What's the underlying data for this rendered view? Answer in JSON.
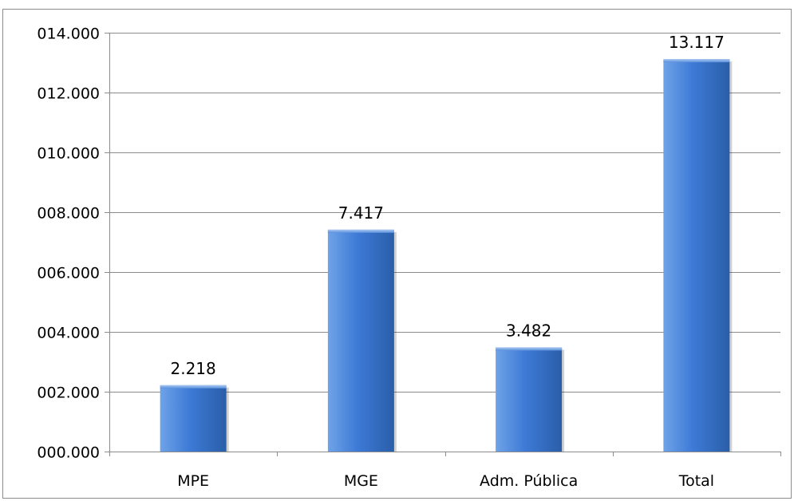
{
  "chart_data": {
    "type": "bar",
    "categories": [
      "MPE",
      "MGE",
      "Adm. Pública",
      "Total"
    ],
    "values": [
      2218,
      7417,
      3482,
      13117
    ],
    "value_labels": [
      "2.218",
      "7.417",
      "3.482",
      "13.117"
    ],
    "ylim": [
      0,
      14000
    ],
    "yticks": [
      0,
      2000,
      4000,
      6000,
      8000,
      10000,
      12000,
      14000
    ],
    "ytick_labels": [
      "000.000",
      "002.000",
      "004.000",
      "006.000",
      "008.000",
      "010.000",
      "012.000",
      "014.000"
    ],
    "grid": true,
    "legend": "none",
    "colors": {
      "bar_light": "#6fa3e8",
      "bar_mid": "#3d7ad6",
      "bar_dark": "#2a5ea8",
      "grid": "#8c8c8c",
      "axis": "#8c8c8c"
    }
  }
}
